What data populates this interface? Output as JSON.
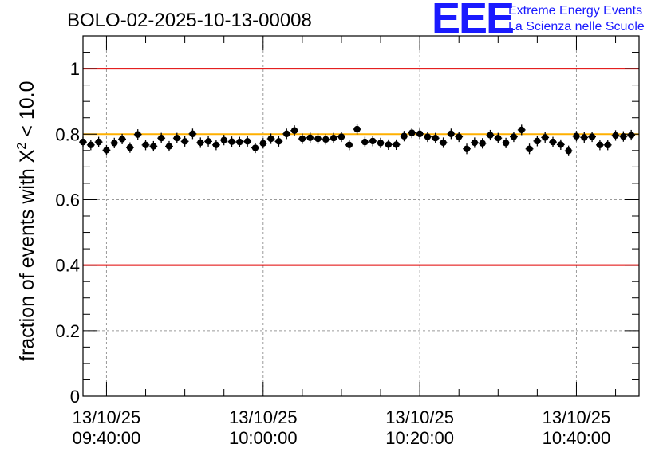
{
  "header": {
    "title": "BOLO-02-2025-10-13-00008",
    "logo": "EEE",
    "logo_line1": "Extreme Energy Events",
    "logo_line2": "La Scienza nelle Scuole"
  },
  "chart_data": {
    "type": "scatter",
    "title": "BOLO-02-2025-10-13-00008",
    "ylabel_prefix": "fraction of events with ",
    "ylabel_symbol": "X",
    "ylabel_sup": "2",
    "ylabel_suffix": " < 10.0",
    "xlabel": "",
    "ylim": [
      0,
      1.1
    ],
    "xlim_minutes": [
      -3,
      68
    ],
    "yticks": [
      "0",
      "0.2",
      "0.4",
      "0.6",
      "0.8",
      "1"
    ],
    "yticks_values": [
      0,
      0.2,
      0.4,
      0.6,
      0.8,
      1
    ],
    "xticks": [
      {
        "minute": 0,
        "date": "13/10/25",
        "time": "09:40:00"
      },
      {
        "minute": 20,
        "date": "13/10/25",
        "time": "10:00:00"
      },
      {
        "minute": 40,
        "date": "13/10/25",
        "time": "10:20:00"
      },
      {
        "minute": 60,
        "date": "13/10/25",
        "time": "10:40:00"
      }
    ],
    "x_start_time": "09:37:00",
    "x_step_minutes": 1,
    "reference_lines": [
      {
        "value": 1.0,
        "color": "#e00000"
      },
      {
        "value": 0.4,
        "color": "#e00000"
      },
      {
        "value": 0.8,
        "color": "#ffb000"
      }
    ],
    "grid": true,
    "marker_color": "#000000",
    "series": [
      {
        "values": [
          0.776,
          0.767,
          0.776,
          0.751,
          0.773,
          0.785,
          0.759,
          0.799,
          0.767,
          0.763,
          0.788,
          0.763,
          0.788,
          0.778,
          0.801,
          0.774,
          0.778,
          0.767,
          0.782,
          0.777,
          0.776,
          0.778,
          0.758,
          0.772,
          0.786,
          0.778,
          0.801,
          0.811,
          0.786,
          0.789,
          0.786,
          0.784,
          0.788,
          0.792,
          0.767,
          0.815,
          0.776,
          0.779,
          0.773,
          0.768,
          0.768,
          0.794,
          0.804,
          0.801,
          0.792,
          0.788,
          0.774,
          0.801,
          0.792,
          0.755,
          0.774,
          0.772,
          0.797,
          0.788,
          0.773,
          0.792,
          0.813,
          0.755,
          0.779,
          0.79,
          0.776,
          0.768,
          0.749,
          0.794,
          0.79,
          0.792,
          0.767,
          0.767,
          0.796,
          0.793,
          0.797
        ],
        "error": 0.016
      }
    ]
  }
}
